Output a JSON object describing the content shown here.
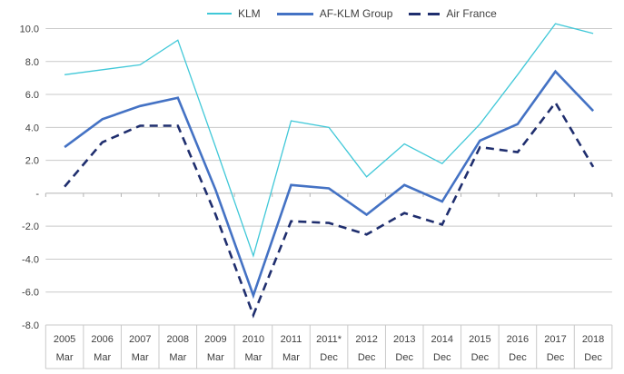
{
  "chart_data": {
    "type": "line",
    "title": "",
    "categories": [
      {
        "year": "2005",
        "period": "Mar"
      },
      {
        "year": "2006",
        "period": "Mar"
      },
      {
        "year": "2007",
        "period": "Mar"
      },
      {
        "year": "2008",
        "period": "Mar"
      },
      {
        "year": "2009",
        "period": "Mar"
      },
      {
        "year": "2010",
        "period": "Mar"
      },
      {
        "year": "2011",
        "period": "Mar"
      },
      {
        "year": "2011*",
        "period": "Dec"
      },
      {
        "year": "2012",
        "period": "Dec"
      },
      {
        "year": "2013",
        "period": "Dec"
      },
      {
        "year": "2014",
        "period": "Dec"
      },
      {
        "year": "2015",
        "period": "Dec"
      },
      {
        "year": "2016",
        "period": "Dec"
      },
      {
        "year": "2017",
        "period": "Dec"
      },
      {
        "year": "2018",
        "period": "Dec"
      }
    ],
    "series": [
      {
        "name": "KLM",
        "color": "#40C8D8",
        "line_style": "solid-thin",
        "values": [
          7.2,
          7.5,
          7.8,
          9.3,
          2.8,
          -3.8,
          4.4,
          4.0,
          1.0,
          3.0,
          1.8,
          4.2,
          7.2,
          10.3,
          9.7
        ]
      },
      {
        "name": "AF-KLM Group",
        "color": "#4472C4",
        "line_style": "solid-thick",
        "values": [
          2.8,
          4.5,
          5.3,
          5.8,
          0.2,
          -6.2,
          0.5,
          0.3,
          -1.3,
          0.5,
          -0.5,
          3.2,
          4.2,
          7.4,
          5.0
        ]
      },
      {
        "name": "Air France",
        "color": "#1F2E6E",
        "line_style": "dashed-thick",
        "values": [
          0.4,
          3.1,
          4.1,
          4.1,
          -1.3,
          -7.4,
          -1.7,
          -1.8,
          -2.5,
          -1.2,
          -1.9,
          2.8,
          2.5,
          5.5,
          1.6
        ]
      }
    ],
    "y_axis": {
      "min": -8,
      "max": 10,
      "step": 2,
      "tick_labels": [
        "10.0",
        "8.0",
        "6.0",
        "4.0",
        "2.0",
        "-",
        "-2.0",
        "-4.0",
        "-6.0",
        "-8.0"
      ]
    },
    "x_axis_rows": [
      "year",
      "period"
    ],
    "grid": true,
    "legend_position": "top"
  },
  "colors": {
    "background": "#FFFFFF",
    "gridline": "#C9C9C9",
    "zero_axis": "#B3B3B3",
    "table_border": "#C9C9C9",
    "text": "#404040"
  }
}
